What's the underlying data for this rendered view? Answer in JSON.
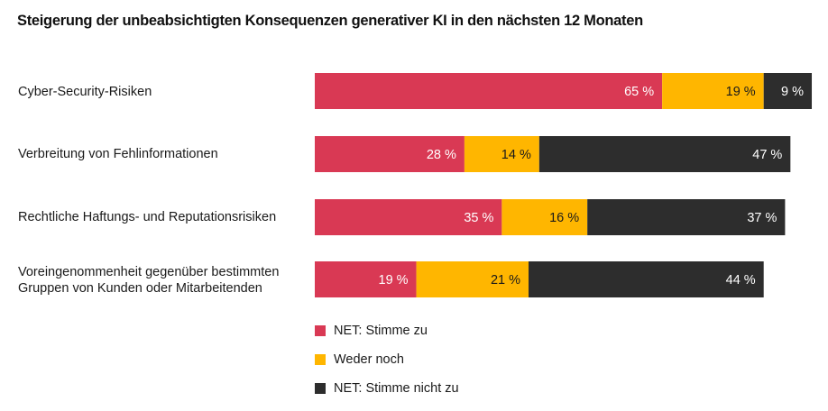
{
  "chart_data": {
    "type": "bar",
    "orientation": "horizontal",
    "stacked": true,
    "title": "Steigerung der unbeabsichtigten Konsequenzen generativer KI in den nächsten 12 Monaten",
    "xlabel": "",
    "ylabel": "",
    "grid": false,
    "legend_position": "bottom",
    "categories": [
      [
        "Cyber-Security-Risiken"
      ],
      [
        "Verbreitung von Fehlinformationen"
      ],
      [
        "Rechtliche Haftungs- und Reputationsrisiken"
      ],
      [
        "Voreingenommenheit gegenüber bestimmten",
        "Gruppen von Kunden oder Mitarbeitenden"
      ]
    ],
    "series": [
      {
        "name": "NET: Stimme zu",
        "color": "#d93954",
        "label_color": "#ffffff",
        "values": [
          65,
          28,
          35,
          19
        ]
      },
      {
        "name": "Weder noch",
        "color": "#ffb600",
        "label_color": "#1a1a1a",
        "values": [
          19,
          14,
          16,
          21
        ]
      },
      {
        "name": "NET: Stimme nicht zu",
        "color": "#2d2d2d",
        "label_color": "#ffffff",
        "values": [
          9,
          47,
          37,
          44
        ]
      }
    ],
    "value_suffix": " %"
  }
}
